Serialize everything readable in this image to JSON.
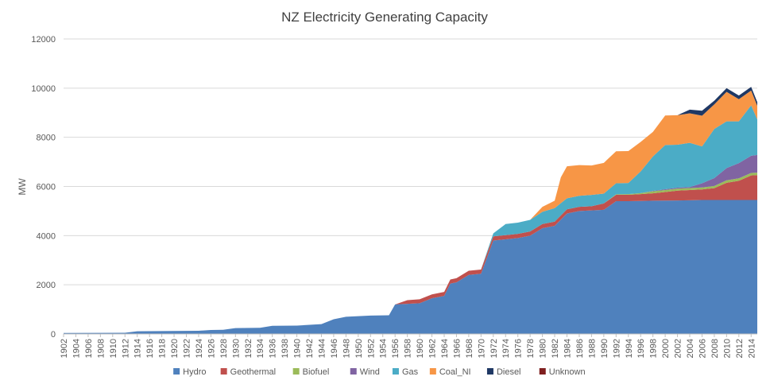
{
  "chart_data": {
    "type": "area",
    "stacked": true,
    "title": "NZ Electricity Generating Capacity",
    "xlabel": "",
    "ylabel": "MW",
    "ylim": [
      0,
      12000
    ],
    "yticks": [
      0,
      2000,
      4000,
      6000,
      8000,
      10000,
      12000
    ],
    "ytick_labels": [
      "0",
      "2000",
      "4000",
      "6000",
      "8000",
      "10000",
      "12000"
    ],
    "xlim": [
      1902,
      2015
    ],
    "xtick_labels": [
      "1902",
      "1904",
      "1906",
      "1908",
      "1910",
      "1912",
      "1914",
      "1916",
      "1918",
      "1920",
      "1922",
      "1924",
      "1926",
      "1928",
      "1930",
      "1932",
      "1934",
      "1936",
      "1938",
      "1940",
      "1942",
      "1944",
      "1946",
      "1948",
      "1950",
      "1952",
      "1954",
      "1956",
      "1958",
      "1960",
      "1962",
      "1964",
      "1966",
      "1968",
      "1970",
      "1972",
      "1974",
      "1976",
      "1978",
      "1980",
      "1982",
      "1984",
      "1986",
      "1988",
      "1990",
      "1992",
      "1994",
      "1996",
      "1998",
      "2000",
      "2002",
      "2004",
      "2006",
      "2008",
      "2010",
      "2012",
      "2014"
    ],
    "grid": true,
    "legend_position": "bottom",
    "series": [
      {
        "name": "Hydro",
        "color": "#4f81bd",
        "points": [
          [
            1902,
            40
          ],
          [
            1908,
            45
          ],
          [
            1912,
            50
          ],
          [
            1914,
            110
          ],
          [
            1924,
            130
          ],
          [
            1926,
            160
          ],
          [
            1928,
            170
          ],
          [
            1930,
            240
          ],
          [
            1934,
            250
          ],
          [
            1936,
            330
          ],
          [
            1940,
            340
          ],
          [
            1944,
            400
          ],
          [
            1946,
            600
          ],
          [
            1948,
            700
          ],
          [
            1952,
            750
          ],
          [
            1955,
            760
          ],
          [
            1956,
            1200
          ],
          [
            1960,
            1250
          ],
          [
            1962,
            1450
          ],
          [
            1964,
            1550
          ],
          [
            1965,
            2050
          ],
          [
            1966,
            2100
          ],
          [
            1968,
            2400
          ],
          [
            1970,
            2450
          ],
          [
            1972,
            3800
          ],
          [
            1974,
            3850
          ],
          [
            1976,
            3900
          ],
          [
            1978,
            4000
          ],
          [
            1980,
            4300
          ],
          [
            1982,
            4400
          ],
          [
            1984,
            4900
          ],
          [
            1986,
            5000
          ],
          [
            1990,
            5050
          ],
          [
            1992,
            5400
          ],
          [
            1994,
            5400
          ],
          [
            1998,
            5420
          ],
          [
            2002,
            5430
          ],
          [
            2006,
            5450
          ],
          [
            2010,
            5450
          ],
          [
            2014,
            5450
          ],
          [
            2015,
            5450
          ]
        ]
      },
      {
        "name": "Geothermal",
        "color": "#c0504d",
        "points": [
          [
            1902,
            0
          ],
          [
            1956,
            0
          ],
          [
            1958,
            150
          ],
          [
            1960,
            160
          ],
          [
            1962,
            160
          ],
          [
            1964,
            160
          ],
          [
            1966,
            170
          ],
          [
            1968,
            170
          ],
          [
            1970,
            170
          ],
          [
            1972,
            170
          ],
          [
            1976,
            170
          ],
          [
            1980,
            170
          ],
          [
            1984,
            170
          ],
          [
            1988,
            170
          ],
          [
            1990,
            260
          ],
          [
            1994,
            260
          ],
          [
            1998,
            300
          ],
          [
            2002,
            400
          ],
          [
            2006,
            430
          ],
          [
            2008,
            480
          ],
          [
            2010,
            700
          ],
          [
            2012,
            780
          ],
          [
            2014,
            1000
          ],
          [
            2015,
            1010
          ]
        ]
      },
      {
        "name": "Biofuel",
        "color": "#9bbb59",
        "points": [
          [
            1902,
            0
          ],
          [
            1990,
            0
          ],
          [
            1992,
            20
          ],
          [
            1996,
            40
          ],
          [
            1998,
            80
          ],
          [
            2002,
            80
          ],
          [
            2006,
            80
          ],
          [
            2010,
            100
          ],
          [
            2014,
            100
          ],
          [
            2015,
            100
          ]
        ]
      },
      {
        "name": "Wind",
        "color": "#8064a2",
        "points": [
          [
            1902,
            0
          ],
          [
            1992,
            0
          ],
          [
            1994,
            0
          ],
          [
            1996,
            0
          ],
          [
            1998,
            20
          ],
          [
            2002,
            40
          ],
          [
            2004,
            40
          ],
          [
            2006,
            170
          ],
          [
            2008,
            320
          ],
          [
            2010,
            500
          ],
          [
            2012,
            620
          ],
          [
            2014,
            700
          ],
          [
            2015,
            720
          ]
        ]
      },
      {
        "name": "Gas",
        "color": "#4bacc6",
        "points": [
          [
            1902,
            0
          ],
          [
            1970,
            0
          ],
          [
            1972,
            120
          ],
          [
            1974,
            450
          ],
          [
            1976,
            460
          ],
          [
            1978,
            470
          ],
          [
            1980,
            500
          ],
          [
            1982,
            550
          ],
          [
            1984,
            450
          ],
          [
            1986,
            450
          ],
          [
            1988,
            460
          ],
          [
            1990,
            400
          ],
          [
            1992,
            450
          ],
          [
            1994,
            450
          ],
          [
            1996,
            880
          ],
          [
            1998,
            1400
          ],
          [
            2000,
            1800
          ],
          [
            2002,
            1750
          ],
          [
            2004,
            1800
          ],
          [
            2006,
            1500
          ],
          [
            2008,
            2000
          ],
          [
            2010,
            1900
          ],
          [
            2012,
            1700
          ],
          [
            2014,
            2050
          ],
          [
            2015,
            1450
          ]
        ]
      },
      {
        "name": "Coal_NI",
        "color": "#f79646",
        "points": [
          [
            1902,
            0
          ],
          [
            1978,
            0
          ],
          [
            1980,
            200
          ],
          [
            1982,
            300
          ],
          [
            1983,
            1050
          ],
          [
            1984,
            1300
          ],
          [
            1986,
            1250
          ],
          [
            1988,
            1200
          ],
          [
            1990,
            1250
          ],
          [
            1992,
            1300
          ],
          [
            1994,
            1300
          ],
          [
            1996,
            1200
          ],
          [
            1998,
            1000
          ],
          [
            2000,
            1200
          ],
          [
            2002,
            1200
          ],
          [
            2004,
            1200
          ],
          [
            2006,
            1250
          ],
          [
            2008,
            1000
          ],
          [
            2010,
            1200
          ],
          [
            2012,
            900
          ],
          [
            2014,
            600
          ],
          [
            2015,
            550
          ]
        ]
      },
      {
        "name": "Diesel",
        "color": "#1f3864",
        "points": [
          [
            1902,
            0
          ],
          [
            2002,
            0
          ],
          [
            2004,
            150
          ],
          [
            2006,
            200
          ],
          [
            2008,
            150
          ],
          [
            2010,
            150
          ],
          [
            2012,
            150
          ],
          [
            2014,
            150
          ],
          [
            2015,
            150
          ]
        ]
      },
      {
        "name": "Unknown",
        "color": "#7f1f1f",
        "points": [
          [
            1902,
            0
          ],
          [
            2015,
            0
          ]
        ]
      }
    ]
  }
}
